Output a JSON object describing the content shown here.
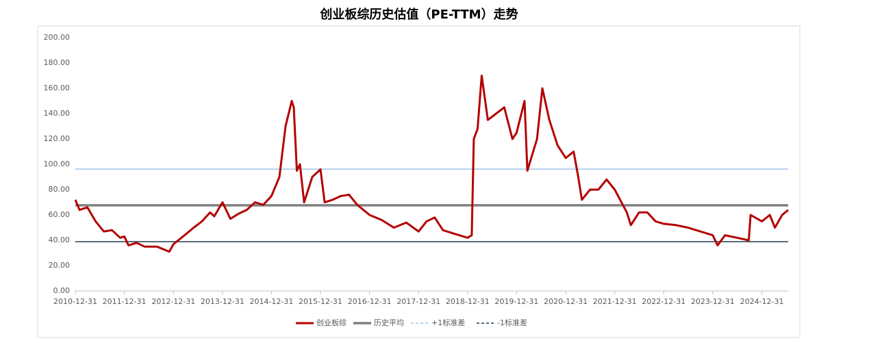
{
  "chart_data": {
    "type": "line",
    "title": "创业板综历史估值（PE-TTM）走势",
    "x": [
      "2010-12-31",
      "2011-01-31",
      "2011-03-31",
      "2011-05-31",
      "2011-07-31",
      "2011-09-30",
      "2011-11-30",
      "2011-12-31",
      "2012-01-31",
      "2012-03-31",
      "2012-05-31",
      "2012-08-31",
      "2012-11-30",
      "2012-12-31",
      "2013-02-28",
      "2013-05-31",
      "2013-07-31",
      "2013-09-30",
      "2013-10-31",
      "2013-12-31",
      "2014-02-28",
      "2014-04-30",
      "2014-06-30",
      "2014-08-31",
      "2014-10-31",
      "2014-12-31",
      "2015-02-28",
      "2015-04-15",
      "2015-05-31",
      "2015-06-15",
      "2015-07-08",
      "2015-07-31",
      "2015-08-31",
      "2015-10-31",
      "2015-12-31",
      "2016-01-31",
      "2016-03-31",
      "2016-05-31",
      "2016-07-31",
      "2016-09-30",
      "2016-12-31",
      "2017-03-31",
      "2017-06-30",
      "2017-09-30",
      "2017-12-31",
      "2018-02-28",
      "2018-04-30",
      "2018-06-30",
      "2018-09-30",
      "2018-12-31",
      "2019-01-31",
      "2019-02-15",
      "2019-03-15",
      "2019-04-15",
      "2019-05-31",
      "2019-07-31",
      "2019-09-30",
      "2019-11-30",
      "2019-12-31",
      "2020-02-28",
      "2020-03-20",
      "2020-05-31",
      "2020-07-10",
      "2020-08-31",
      "2020-10-31",
      "2020-12-31",
      "2021-02-28",
      "2021-03-31",
      "2021-04-30",
      "2021-06-30",
      "2021-08-31",
      "2021-10-31",
      "2021-12-31",
      "2022-03-31",
      "2022-04-30",
      "2022-06-30",
      "2022-08-31",
      "2022-10-31",
      "2022-12-31",
      "2023-03-31",
      "2023-06-30",
      "2023-09-30",
      "2023-12-31",
      "2024-02-05",
      "2024-03-31",
      "2024-06-30",
      "2024-09-24",
      "2024-10-08",
      "2024-12-31",
      "2025-02-28",
      "2025-04-07",
      "2025-05-31",
      "2025-07-15"
    ],
    "series": [
      {
        "name": "创业板综",
        "color": "#b40000",
        "width": 3,
        "values": [
          72,
          64,
          66,
          55,
          47,
          48,
          42,
          43,
          36,
          38,
          35,
          35,
          31,
          37,
          42,
          50,
          55,
          62,
          59,
          70,
          57,
          61,
          64,
          70,
          68,
          75,
          90,
          130,
          150,
          145,
          95,
          100,
          70,
          90,
          96,
          70,
          72,
          75,
          76,
          68,
          60,
          56,
          50,
          54,
          47,
          55,
          58,
          48,
          45,
          42,
          44,
          120,
          128,
          170,
          135,
          140,
          145,
          120,
          125,
          150,
          95,
          120,
          160,
          135,
          115,
          105,
          110,
          92,
          72,
          80,
          80,
          88,
          80,
          62,
          52,
          62,
          62,
          55,
          53,
          52,
          50,
          47,
          44,
          36,
          44,
          42,
          40,
          60,
          55,
          60,
          50,
          60,
          64
        ]
      },
      {
        "name": "历史平均",
        "color": "#808080",
        "width": 3.5,
        "x": [
          "2010-12-31",
          "2025-07-15"
        ],
        "values": [
          67.6,
          67.6
        ]
      },
      {
        "name": "+1标准差",
        "color": "#9dc3e6",
        "width": 1.5,
        "x": [
          "2010-12-31",
          "2025-07-15"
        ],
        "values": [
          96.2,
          96.2
        ]
      },
      {
        "name": "-1标准差",
        "color": "#203a50",
        "width": 1.5,
        "x": [
          "2010-12-31",
          "2025-07-15"
        ],
        "values": [
          38.9,
          38.9
        ]
      }
    ],
    "xlim": [
      "2010-12-31",
      "2025-07-15"
    ],
    "xticks": [
      "2010-12-31",
      "2011-12-31",
      "2012-12-31",
      "2013-12-31",
      "2014-12-31",
      "2015-12-31",
      "2016-12-31",
      "2017-12-31",
      "2018-12-31",
      "2019-12-31",
      "2020-12-31",
      "2021-12-31",
      "2022-12-31",
      "2023-12-31",
      "2024-12-31"
    ],
    "ylim": [
      0,
      200
    ],
    "yticks": [
      {
        "value": 0,
        "label": "0.00"
      },
      {
        "value": 20,
        "label": "20.00"
      },
      {
        "value": 40,
        "label": "40.00"
      },
      {
        "value": 60,
        "label": "60.00"
      },
      {
        "value": 80,
        "label": "80.00"
      },
      {
        "value": 100,
        "label": "100.00"
      },
      {
        "value": 120,
        "label": "120.00"
      },
      {
        "value": 140,
        "label": "140.00"
      },
      {
        "value": 160,
        "label": "160.00"
      },
      {
        "value": 180,
        "label": "180.00"
      },
      {
        "value": 200,
        "label": "200.00"
      }
    ],
    "legend": "bottom"
  }
}
